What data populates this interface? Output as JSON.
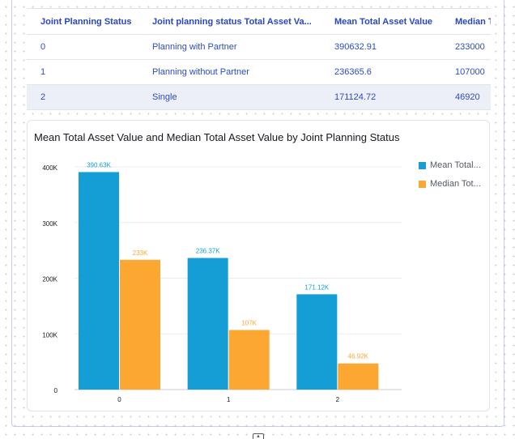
{
  "table": {
    "headers": [
      "Joint Planning Status",
      "Joint planning status Total Asset Va...",
      "Mean Total Asset Value",
      "Median T"
    ],
    "rows": [
      [
        "0",
        "Planning with Partner",
        "390632.91",
        "233000"
      ],
      [
        "1",
        "Planning without Partner",
        "236365.6",
        "107000"
      ],
      [
        "2",
        "Single",
        "171124.72",
        "46920"
      ]
    ]
  },
  "chart": {
    "title": "Mean Total Asset Value and Median Total Asset Value by Joint Planning Status",
    "legend": [
      "Mean Total...",
      "Median Tot..."
    ]
  },
  "colors": {
    "mean": "#159ed6",
    "median": "#fba731",
    "header_text": "#2946be",
    "accent_row": "#eceff8"
  },
  "chart_data": {
    "type": "bar",
    "categories": [
      "0",
      "1",
      "2"
    ],
    "series": [
      {
        "name": "Mean Total...",
        "values": [
          390632.91,
          236365.6,
          171124.72
        ],
        "labels": [
          "390.63K",
          "236.37K",
          "171.12K"
        ]
      },
      {
        "name": "Median Tot...",
        "values": [
          233000,
          107000,
          46920
        ],
        "labels": [
          "233K",
          "107K",
          "46.92K"
        ]
      }
    ],
    "yticks": [
      "0",
      "100K",
      "200K",
      "300K",
      "400K"
    ],
    "ylim": [
      0,
      400000
    ],
    "grid": true,
    "legend_position": "right",
    "title": "Mean Total Asset Value and Median Total Asset Value by Joint Planning Status",
    "xlabel": "",
    "ylabel": ""
  }
}
